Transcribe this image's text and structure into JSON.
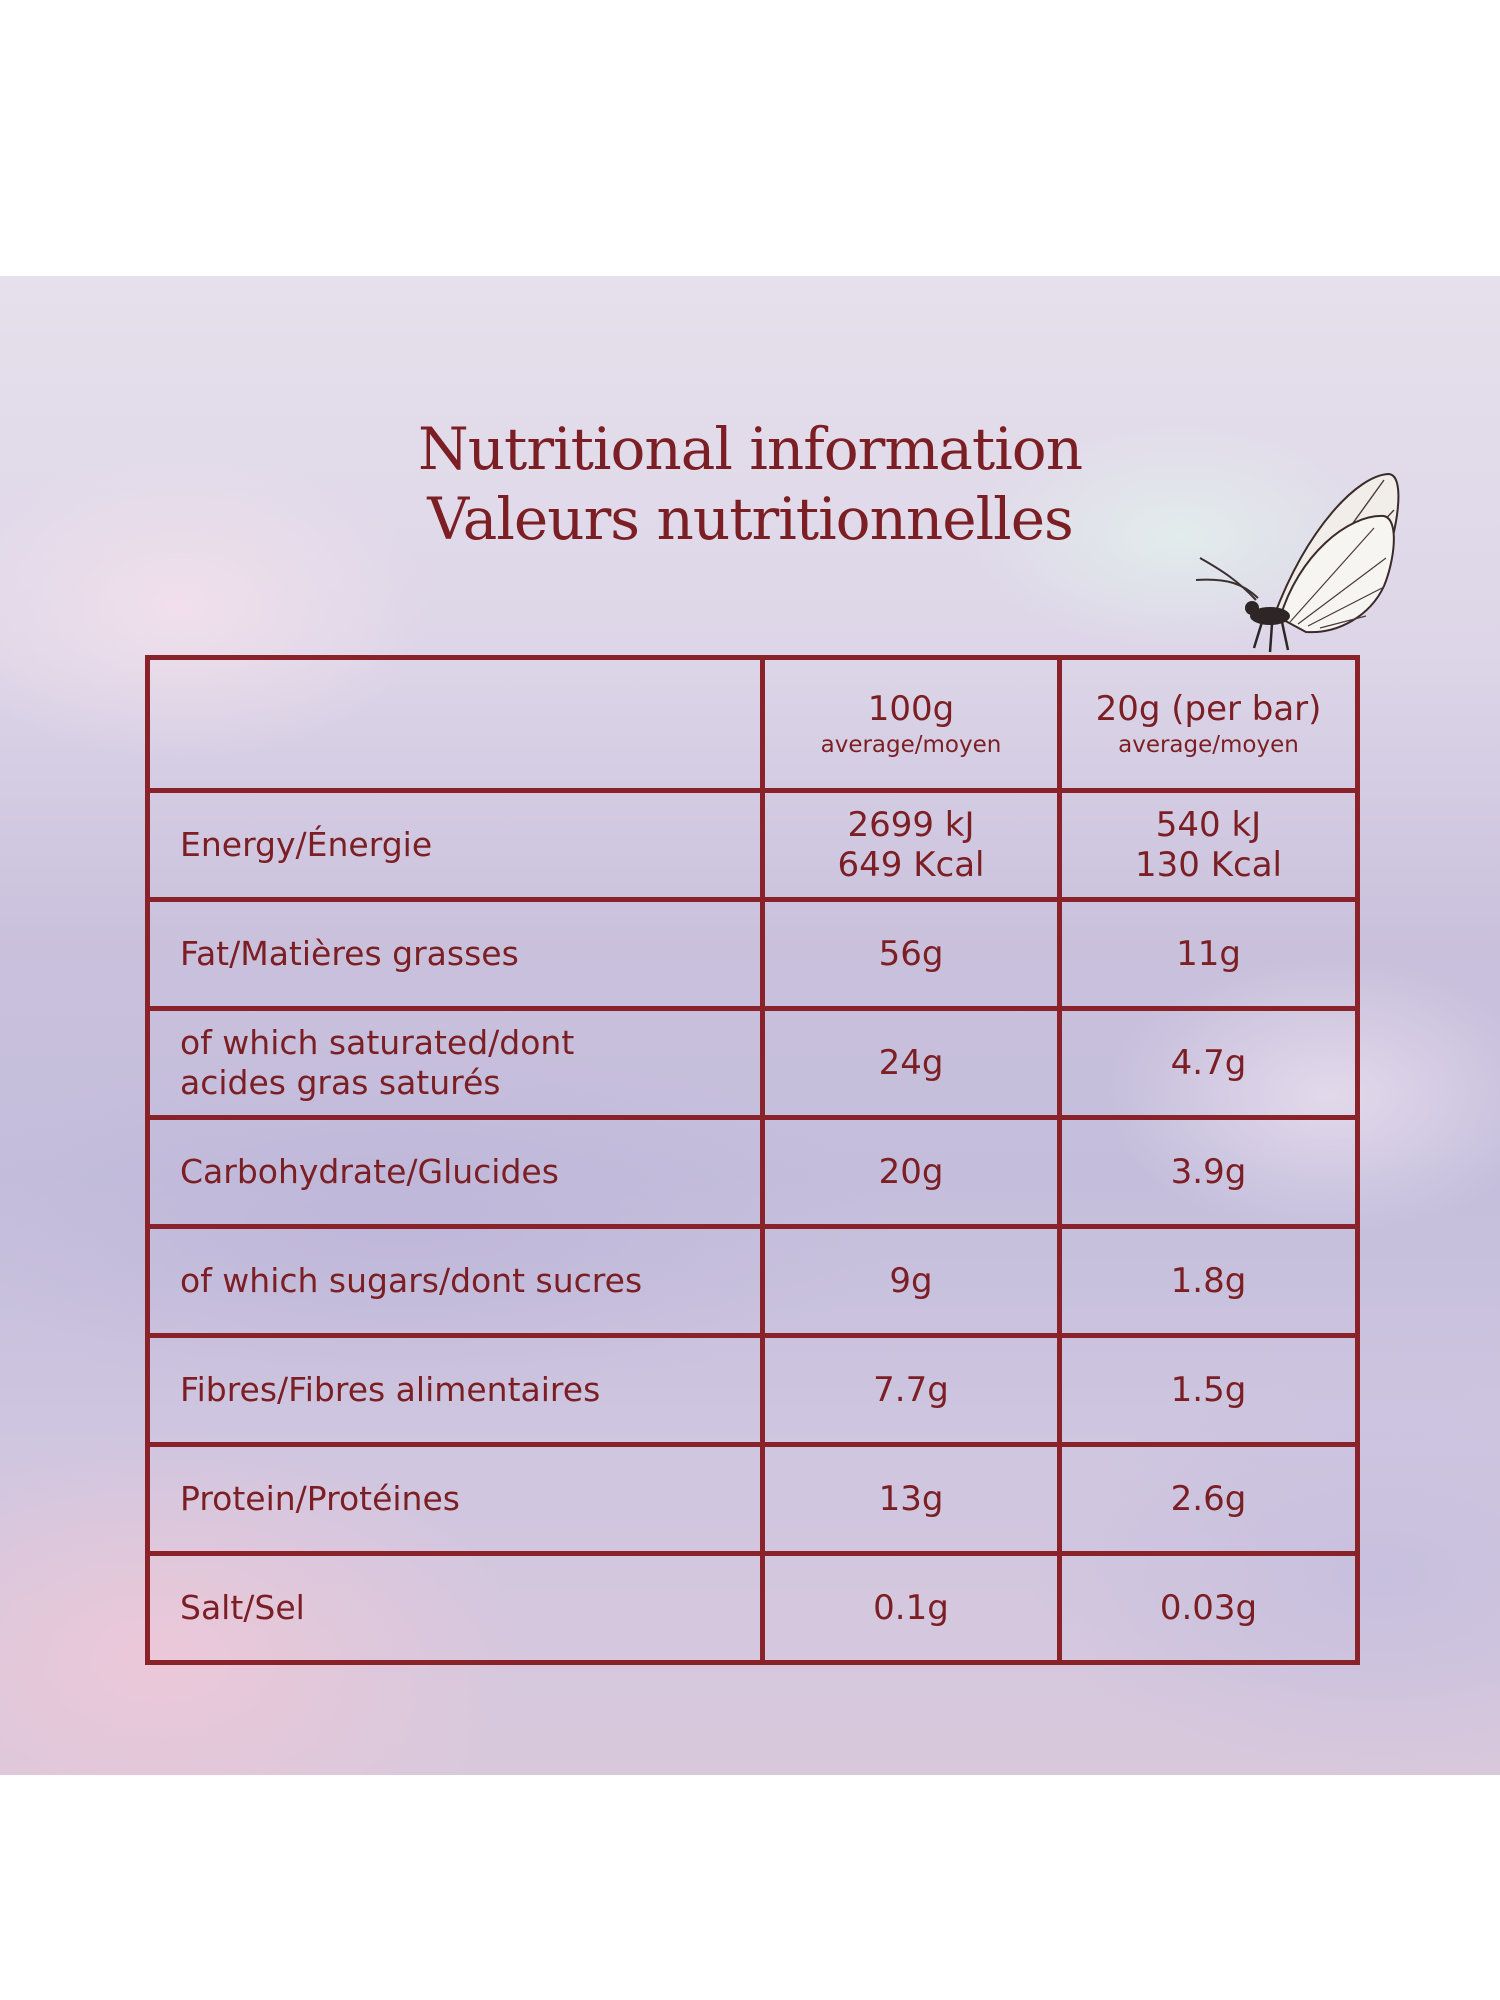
{
  "title": {
    "en": "Nutritional information",
    "fr": "Valeurs nutritionnelles"
  },
  "table": {
    "header": {
      "col1": "",
      "col2": {
        "main": "100g",
        "sub": "average/moyen"
      },
      "col3": {
        "main": "20g (per bar)",
        "sub": "average/moyen"
      }
    },
    "rows": [
      {
        "label": [
          "Energy/Énergie"
        ],
        "per100": [
          "2699 kJ",
          "649 Kcal"
        ],
        "perBar": [
          "540 kJ",
          "130 Kcal"
        ]
      },
      {
        "label": [
          "Fat/Matières grasses"
        ],
        "per100": [
          "56g"
        ],
        "perBar": [
          "11g"
        ]
      },
      {
        "label": [
          "of which saturated/dont",
          "acides gras saturés"
        ],
        "per100": [
          "24g"
        ],
        "perBar": [
          "4.7g"
        ]
      },
      {
        "label": [
          "Carbohydrate/Glucides"
        ],
        "per100": [
          "20g"
        ],
        "perBar": [
          "3.9g"
        ]
      },
      {
        "label": [
          "of which sugars/dont sucres"
        ],
        "per100": [
          "9g"
        ],
        "perBar": [
          "1.8g"
        ]
      },
      {
        "label": [
          "Fibres/Fibres alimentaires"
        ],
        "per100": [
          "7.7g"
        ],
        "perBar": [
          "1.5g"
        ]
      },
      {
        "label": [
          "Protein/Protéines"
        ],
        "per100": [
          "13g"
        ],
        "perBar": [
          "2.6g"
        ]
      },
      {
        "label": [
          "Salt/Sel"
        ],
        "per100": [
          "0.1g"
        ],
        "perBar": [
          "0.03g"
        ]
      }
    ]
  },
  "colors": {
    "text": "#7c1f24",
    "border": "#8a2329"
  },
  "decor": {
    "butterfly": "butterfly-icon"
  }
}
